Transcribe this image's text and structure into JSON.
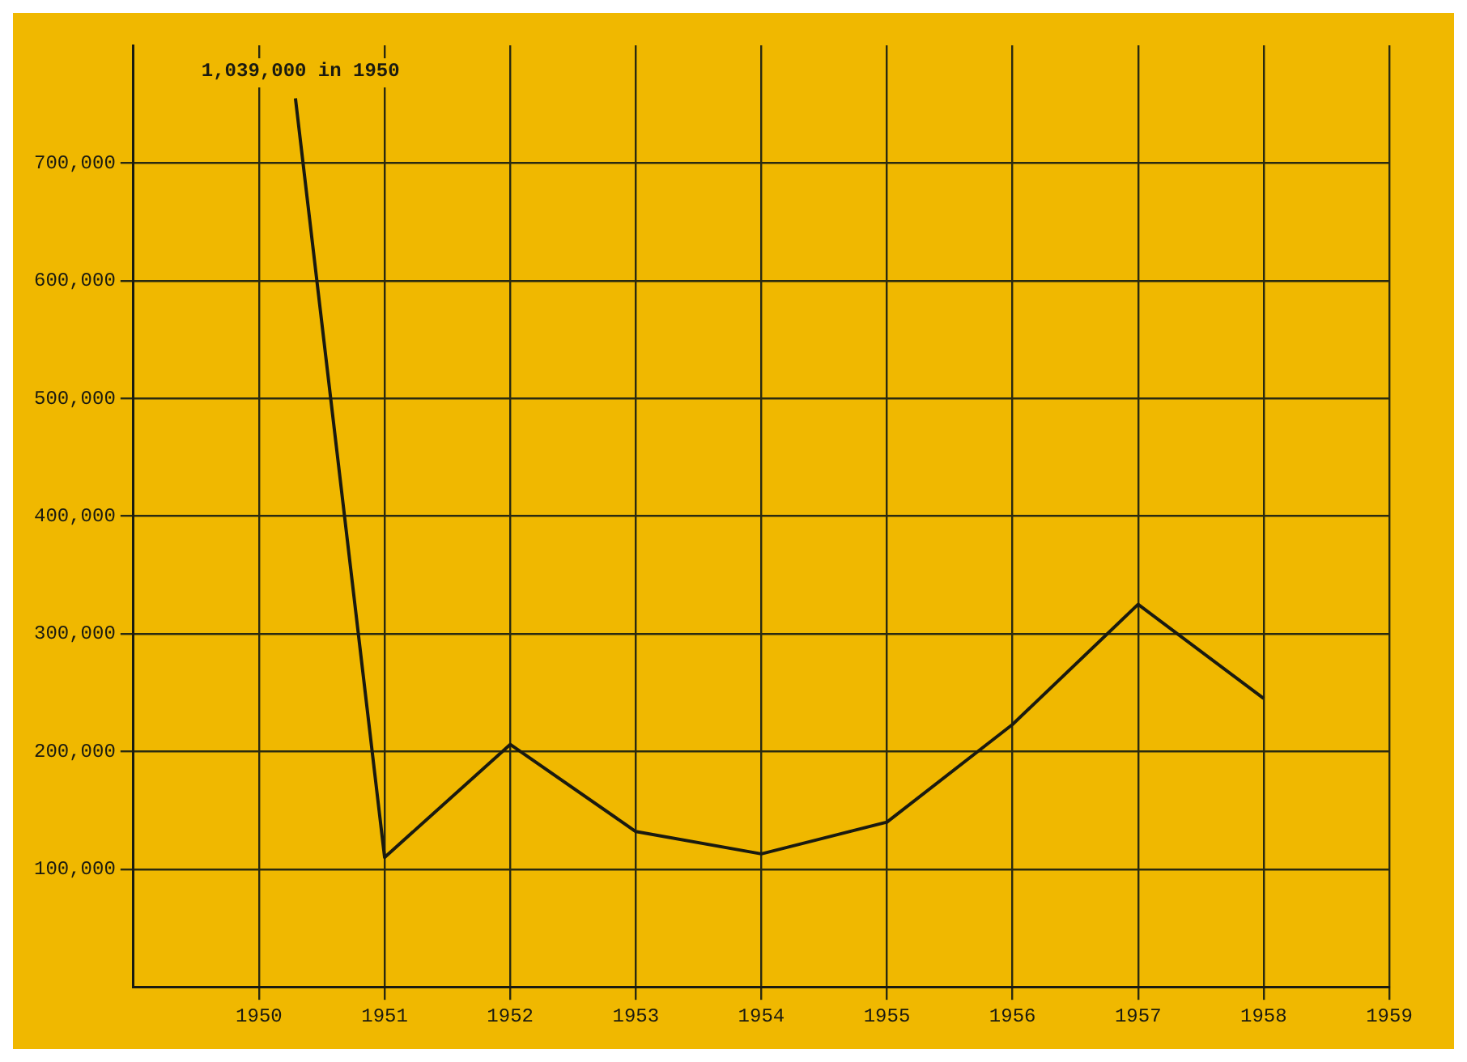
{
  "chart_data": {
    "type": "line",
    "series": [
      {
        "color": "#1a1a10",
        "x": [
          1950.29,
          1951,
          1952,
          1953,
          1954,
          1955,
          1956,
          1957,
          1958
        ],
        "values": [
          755000,
          110000,
          206000,
          132000,
          113000,
          140000,
          223000,
          325000,
          245000
        ]
      }
    ],
    "xlim": [
      1949,
      1959
    ],
    "xticks": [
      1950,
      1951,
      1952,
      1953,
      1954,
      1955,
      1956,
      1957,
      1958,
      1959
    ],
    "ylim": [
      0,
      800000
    ],
    "yticks": [
      {
        "value": 100000,
        "label": "100,000"
      },
      {
        "value": 200000,
        "label": "200,000"
      },
      {
        "value": 300000,
        "label": "300,000"
      },
      {
        "value": 400000,
        "label": "400,000"
      },
      {
        "value": 500000,
        "label": "500,000"
      },
      {
        "value": 600000,
        "label": "600,000"
      },
      {
        "value": 700000,
        "label": "700,000"
      }
    ],
    "grid": true,
    "legend": false,
    "marker": "none",
    "line_style": "solid",
    "annotations": [
      "1,039,000 in 1950"
    ]
  }
}
